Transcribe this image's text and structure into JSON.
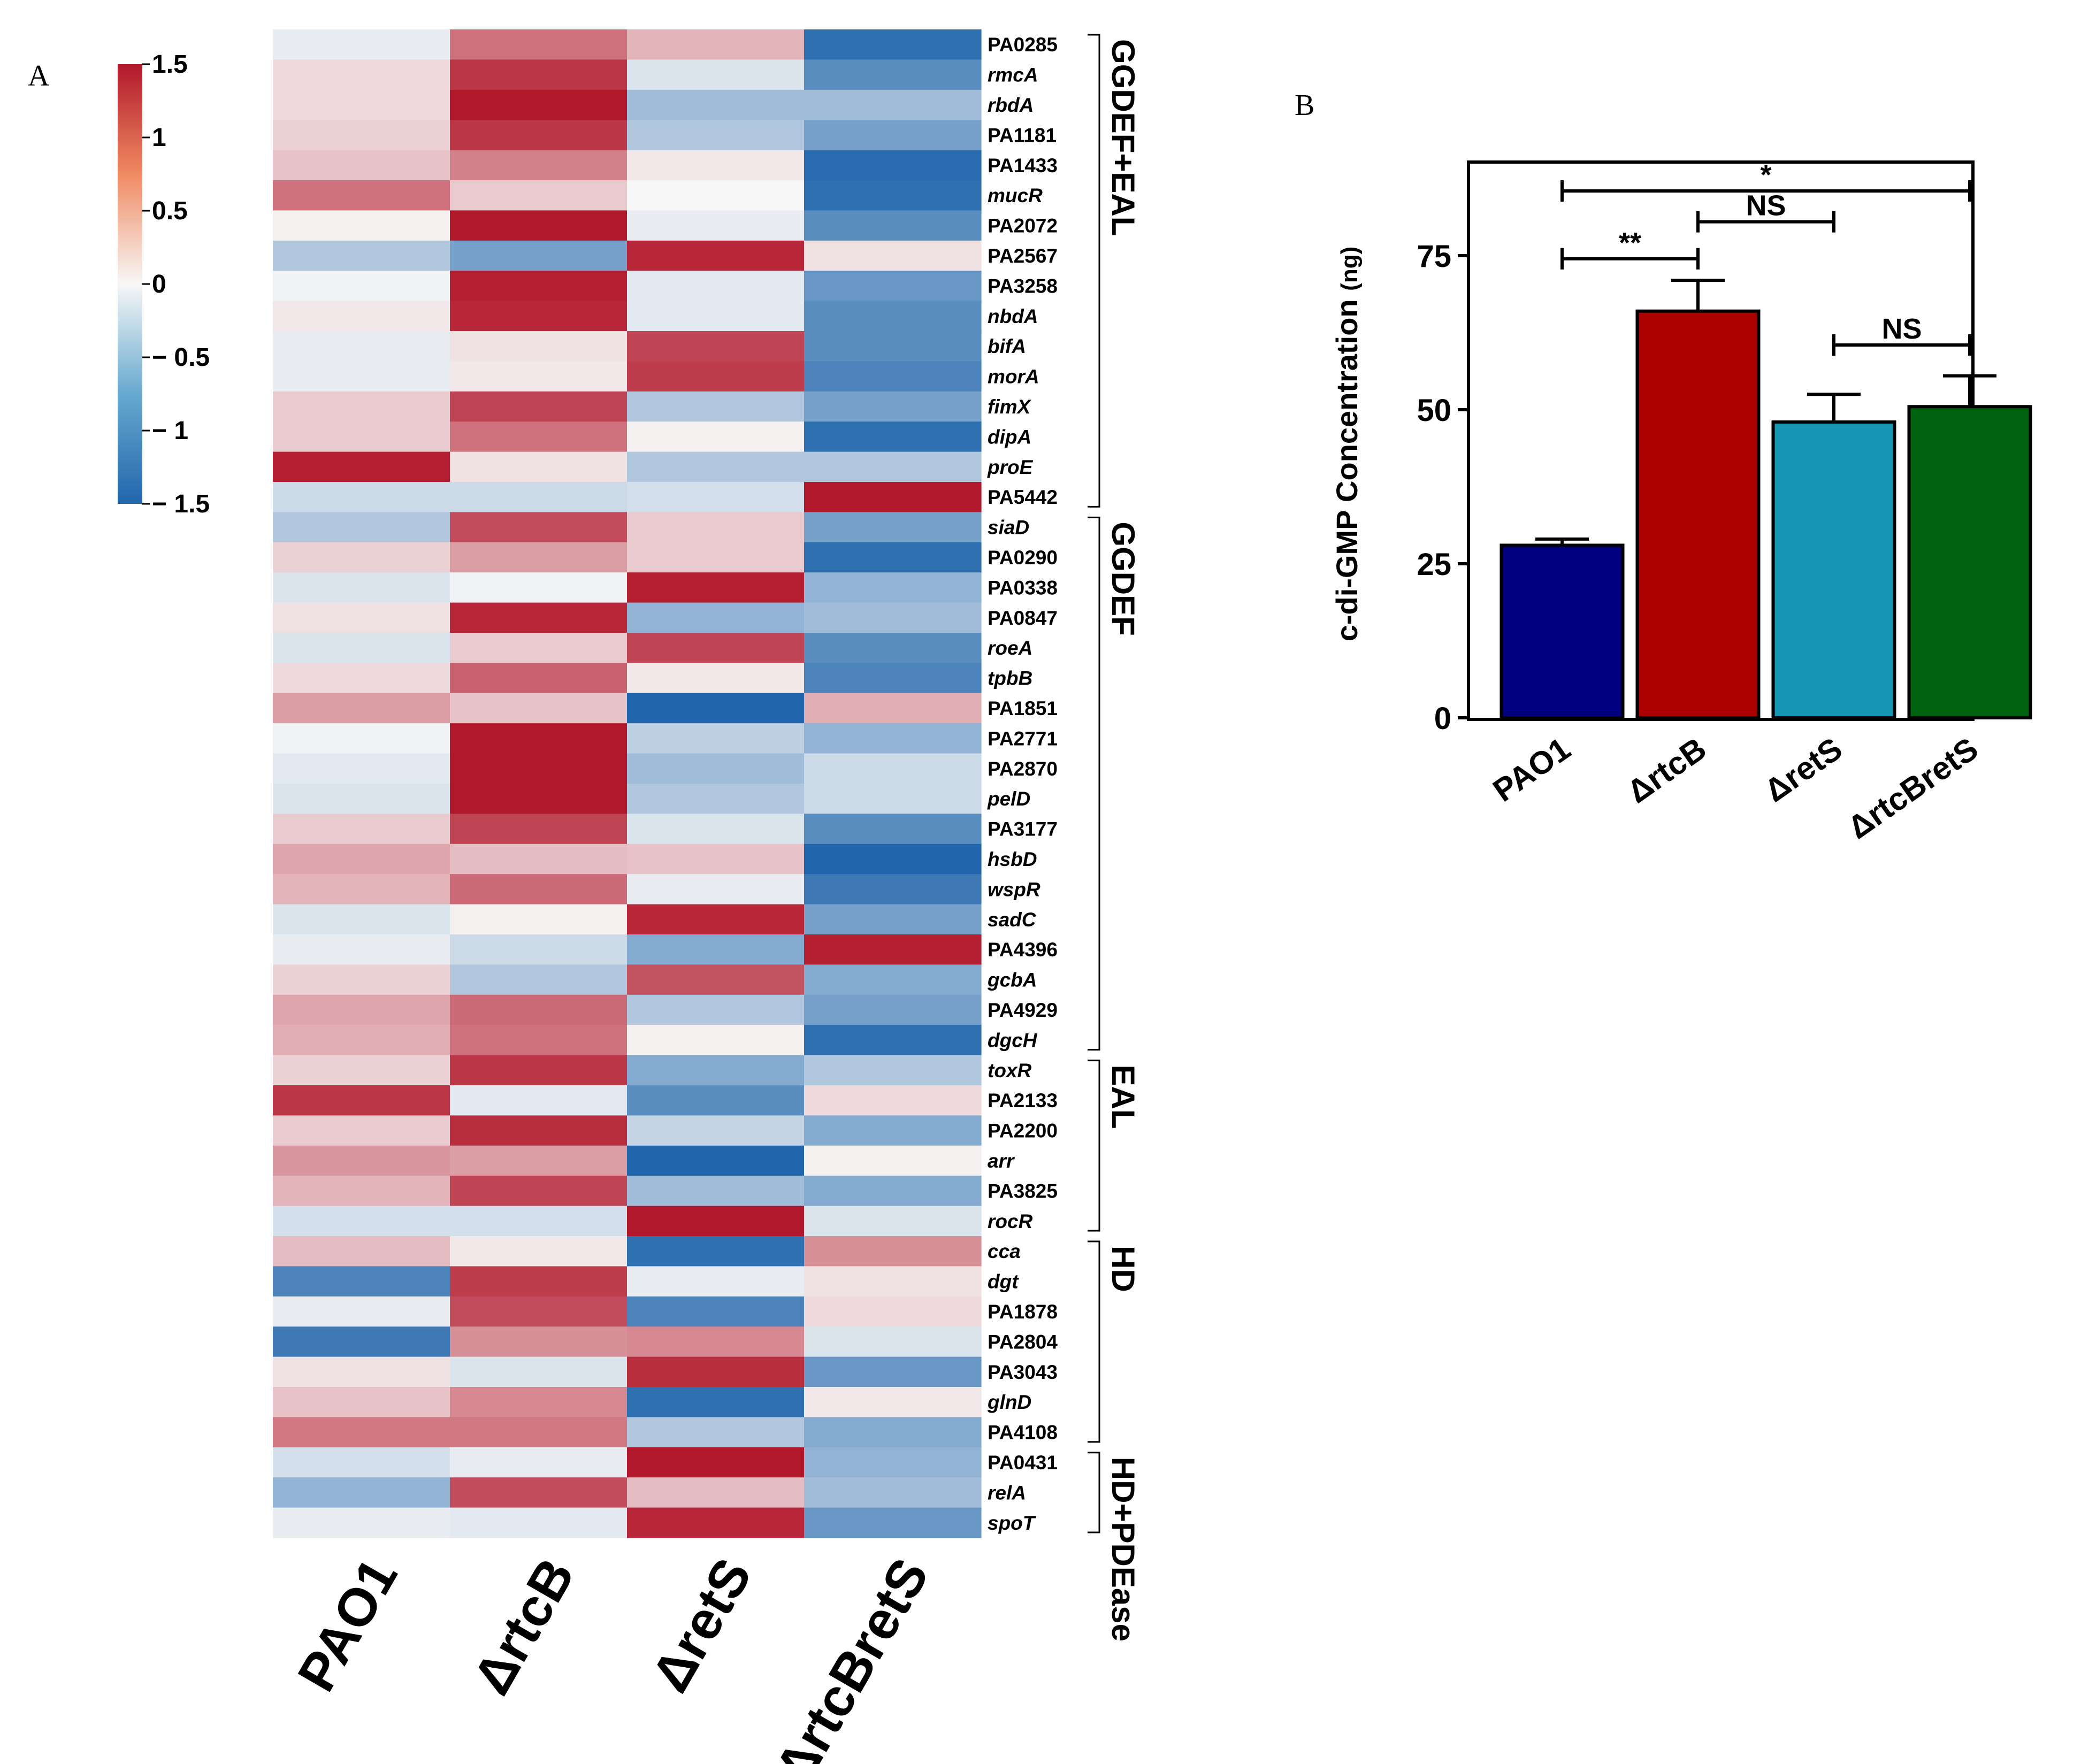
{
  "panel_labels": {
    "a": "A",
    "b": "B"
  },
  "chart_data": [
    {
      "type": "heatmap",
      "title": "",
      "columns": [
        "PAO1",
        "ΔrtcB",
        "ΔretS",
        "ΔrtcBretS"
      ],
      "colorbar": {
        "min": -1.5,
        "max": 1.5,
        "ticks": [
          "1.5",
          "1",
          "0.5",
          "0",
          "− 0.5",
          "− 1",
          "− 1.5"
        ],
        "low_color": "#2166ac",
        "mid_color": "#f7f7f7",
        "high_color": "#b2182b"
      },
      "rows": [
        {
          "gene": "PA0285",
          "values": [
            -0.1,
            0.9,
            0.45,
            -1.4
          ]
        },
        {
          "gene": "rmcA",
          "values": [
            0.2,
            1.3,
            -0.2,
            -1.1
          ]
        },
        {
          "gene": "rbdA",
          "values": [
            0.2,
            1.5,
            -0.6,
            -0.6
          ]
        },
        {
          "gene": "PA1181",
          "values": [
            0.25,
            1.3,
            -0.5,
            -0.9
          ]
        },
        {
          "gene": "PA1433",
          "values": [
            0.35,
            0.8,
            0.1,
            -1.45
          ]
        },
        {
          "gene": "mucR",
          "values": [
            0.9,
            0.3,
            0.0,
            -1.4
          ]
        },
        {
          "gene": "PA2072",
          "values": [
            0.05,
            1.5,
            -0.1,
            -1.1
          ]
        },
        {
          "gene": "PA2567",
          "values": [
            -0.5,
            -0.9,
            1.4,
            0.15
          ]
        },
        {
          "gene": "PA3258",
          "values": [
            -0.05,
            1.45,
            -0.15,
            -1.0
          ]
        },
        {
          "gene": "nbdA",
          "values": [
            0.1,
            1.4,
            -0.15,
            -1.1
          ]
        },
        {
          "gene": "bifA",
          "values": [
            -0.1,
            0.15,
            1.2,
            -1.1
          ]
        },
        {
          "gene": "morA",
          "values": [
            -0.1,
            0.1,
            1.25,
            -1.2
          ]
        },
        {
          "gene": "fimX",
          "values": [
            0.3,
            1.2,
            -0.5,
            -0.9
          ]
        },
        {
          "gene": "dipA",
          "values": [
            0.3,
            0.9,
            0.05,
            -1.4
          ]
        },
        {
          "gene": "proE",
          "values": [
            1.45,
            0.15,
            -0.5,
            -0.5
          ]
        },
        {
          "gene": "PA5442",
          "values": [
            -0.3,
            -0.3,
            -0.25,
            1.5
          ]
        },
        {
          "gene": "siaD",
          "values": [
            -0.5,
            1.15,
            0.3,
            -0.9
          ]
        },
        {
          "gene": "PA0290",
          "values": [
            0.25,
            0.6,
            0.3,
            -1.4
          ]
        },
        {
          "gene": "PA0338",
          "values": [
            -0.2,
            -0.05,
            1.45,
            -0.7
          ]
        },
        {
          "gene": "PA0847",
          "values": [
            0.15,
            1.4,
            -0.7,
            -0.6
          ]
        },
        {
          "gene": "roeA",
          "values": [
            -0.2,
            0.3,
            1.2,
            -1.1
          ]
        },
        {
          "gene": "tpbB",
          "values": [
            0.2,
            1.0,
            0.1,
            -1.2
          ]
        },
        {
          "gene": "PA1851",
          "values": [
            0.6,
            0.35,
            -1.5,
            0.5
          ]
        },
        {
          "gene": "PA2771",
          "values": [
            -0.05,
            1.55,
            -0.4,
            -0.7
          ]
        },
        {
          "gene": "PA2870",
          "values": [
            -0.15,
            1.55,
            -0.6,
            -0.3
          ]
        },
        {
          "gene": "pelD",
          "values": [
            -0.2,
            1.55,
            -0.5,
            -0.3
          ]
        },
        {
          "gene": "PA3177",
          "values": [
            0.3,
            1.2,
            -0.2,
            -1.1
          ]
        },
        {
          "gene": "hsbD",
          "values": [
            0.55,
            0.4,
            0.35,
            -1.5
          ]
        },
        {
          "gene": "wspR",
          "values": [
            0.45,
            0.95,
            -0.1,
            -1.3
          ]
        },
        {
          "gene": "sadC",
          "values": [
            -0.2,
            0.05,
            1.4,
            -0.9
          ]
        },
        {
          "gene": "PA4396",
          "values": [
            -0.1,
            -0.3,
            -0.8,
            1.45
          ]
        },
        {
          "gene": "gcbA",
          "values": [
            0.25,
            -0.5,
            1.1,
            -0.8
          ]
        },
        {
          "gene": "PA4929",
          "values": [
            0.55,
            0.95,
            -0.5,
            -0.9
          ]
        },
        {
          "gene": "dgcH",
          "values": [
            0.5,
            0.9,
            0.05,
            -1.4
          ]
        },
        {
          "gene": "toxR",
          "values": [
            0.25,
            1.3,
            -0.8,
            -0.5
          ]
        },
        {
          "gene": "PA2133",
          "values": [
            1.3,
            -0.15,
            -1.1,
            0.2
          ]
        },
        {
          "gene": "PA2200",
          "values": [
            0.3,
            1.35,
            -0.35,
            -0.8
          ]
        },
        {
          "gene": "arr",
          "values": [
            0.65,
            0.6,
            -1.5,
            0.05
          ]
        },
        {
          "gene": "PA3825",
          "values": [
            0.45,
            1.2,
            -0.6,
            -0.8
          ]
        },
        {
          "gene": "rocR",
          "values": [
            -0.25,
            -0.25,
            1.55,
            -0.2
          ]
        },
        {
          "gene": "cca",
          "values": [
            0.4,
            0.1,
            -1.4,
            0.7
          ]
        },
        {
          "gene": "dgt",
          "values": [
            -1.2,
            1.25,
            -0.1,
            0.15
          ]
        },
        {
          "gene": "PA1878",
          "values": [
            -0.1,
            1.15,
            -1.2,
            0.2
          ]
        },
        {
          "gene": "PA2804",
          "values": [
            -1.3,
            0.7,
            0.75,
            -0.2
          ]
        },
        {
          "gene": "PA3043",
          "values": [
            0.15,
            -0.2,
            1.35,
            -1.0
          ]
        },
        {
          "gene": "glnD",
          "values": [
            0.35,
            0.75,
            -1.4,
            0.1
          ]
        },
        {
          "gene": "PA4108",
          "values": [
            0.85,
            0.85,
            -0.5,
            -0.8
          ]
        },
        {
          "gene": "PA0431",
          "values": [
            -0.25,
            -0.1,
            1.5,
            -0.7
          ]
        },
        {
          "gene": "relA",
          "values": [
            -0.7,
            1.15,
            0.4,
            -0.6
          ]
        },
        {
          "gene": "spoT",
          "values": [
            -0.1,
            -0.15,
            1.4,
            -1.0
          ]
        }
      ],
      "groups": [
        {
          "label": "GGDEF+EAL",
          "first_row": 0,
          "last_row": 15
        },
        {
          "label": "GGDEF",
          "first_row": 16,
          "last_row": 33
        },
        {
          "label": "EAL",
          "first_row": 34,
          "last_row": 39
        },
        {
          "label": "HD",
          "first_row": 40,
          "last_row": 46
        },
        {
          "label": "HD+PDEase",
          "first_row": 47,
          "last_row": 49
        }
      ]
    },
    {
      "type": "bar",
      "title": "",
      "ylabel": "c-di-GMP Concentration",
      "yunit": "(ng)",
      "xlabel": "",
      "ylim": [
        0,
        90
      ],
      "yticks": [
        0,
        25,
        50,
        75
      ],
      "grid": false,
      "categories": [
        "PAO1",
        "ΔrtcB",
        "ΔretS",
        "ΔrtcBretS"
      ],
      "values": [
        28,
        66,
        48,
        50.5
      ],
      "errors": [
        1,
        5,
        4.5,
        5
      ],
      "colors": [
        "#000080",
        "#aa0000",
        "#1597b3",
        "#00610f"
      ],
      "significance": [
        {
          "from": 0,
          "to": 3,
          "label": "*",
          "y": 85.5
        },
        {
          "from": 1,
          "to": 2,
          "label": "NS",
          "y": 80.5
        },
        {
          "from": 0,
          "to": 1,
          "label": "**",
          "y": 74.5
        },
        {
          "from": 2,
          "to": 3,
          "label": "NS",
          "y": 60.5
        }
      ]
    }
  ]
}
